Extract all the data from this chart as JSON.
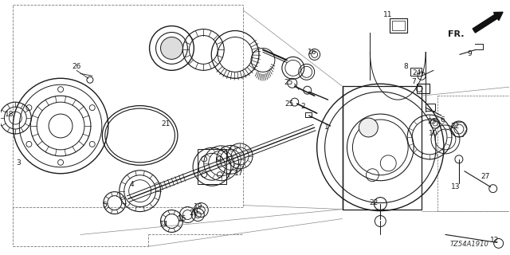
{
  "diagram_code": "TZ54A1910",
  "background_color": "#ffffff",
  "line_color": "#1a1a1a",
  "fig_width": 6.4,
  "fig_height": 3.2,
  "dpi": 100,
  "annotation_fontsize": 6.5
}
